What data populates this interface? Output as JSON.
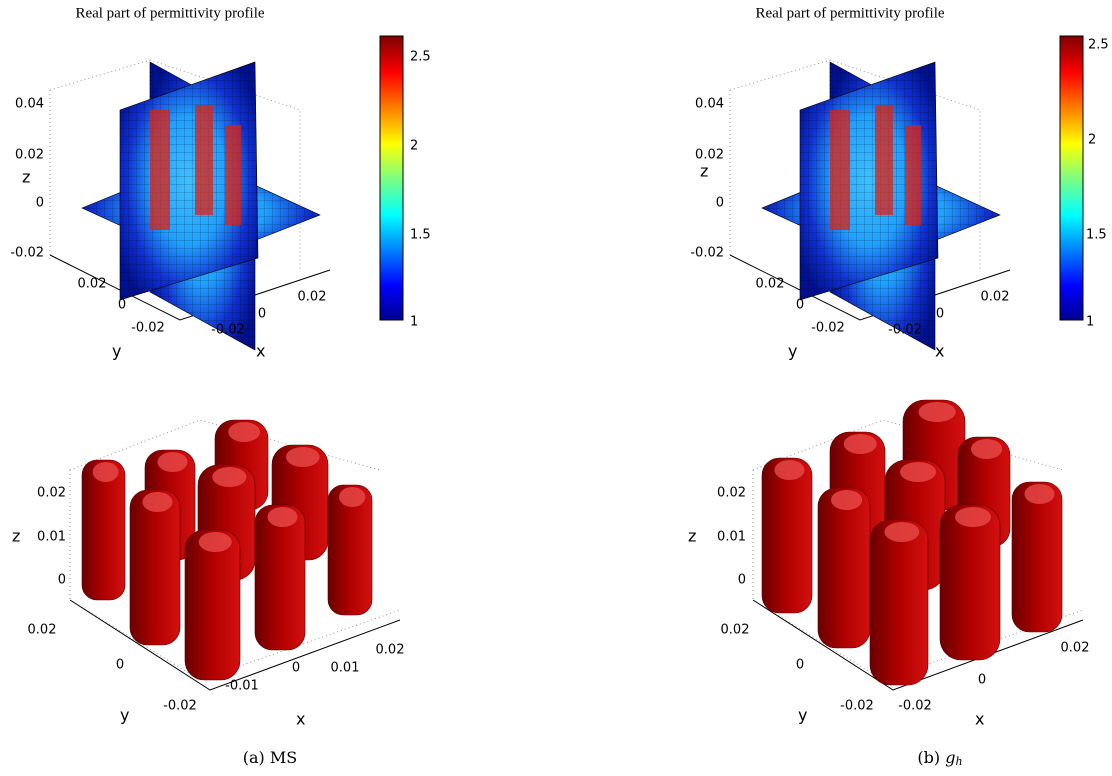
{
  "top_panels": [
    {
      "title": "Real part of permittivity profile",
      "z_label": "z",
      "y_label": "y",
      "x_label": "x",
      "z_ticks": [
        "0.04",
        "0.02",
        "0",
        "-0.02"
      ],
      "y_ticks": [
        "0.02",
        "0",
        "-0.02"
      ],
      "x_ticks": [
        "-0.02",
        "0",
        "0.02"
      ],
      "colorbar_ticks": [
        "2.5",
        "2",
        "1.5",
        "1"
      ]
    },
    {
      "title": "Real part of permittivity profile",
      "z_label": "z",
      "y_label": "y",
      "x_label": "x",
      "z_ticks": [
        "0.04",
        "0.02",
        "0",
        "-0.02"
      ],
      "y_ticks": [
        "0.02",
        "0",
        "-0.02"
      ],
      "x_ticks": [
        "-0.02",
        "0",
        "0.02"
      ],
      "colorbar_ticks": [
        "2.5",
        "2",
        "1.5",
        "1"
      ]
    }
  ],
  "bottom_panels": [
    {
      "z_label": "z",
      "y_label": "y",
      "x_label": "x",
      "z_ticks": [
        "0.02",
        "0.01",
        "0"
      ],
      "y_ticks": [
        "0.02",
        "0",
        "-0.02"
      ],
      "x_ticks": [
        "-0.01",
        "0",
        "0.01",
        "0.02"
      ]
    },
    {
      "z_label": "z",
      "y_label": "y",
      "x_label": "x",
      "z_ticks": [
        "0.02",
        "0.01",
        "0"
      ],
      "y_ticks": [
        "0.02",
        "0",
        "-0.02"
      ],
      "x_ticks": [
        "-0.02",
        "0",
        "0.02"
      ]
    }
  ],
  "captions": [
    {
      "label": "(a)",
      "text": "MS"
    },
    {
      "label": "(b)",
      "symbol": "g",
      "subscript": "h"
    }
  ]
}
